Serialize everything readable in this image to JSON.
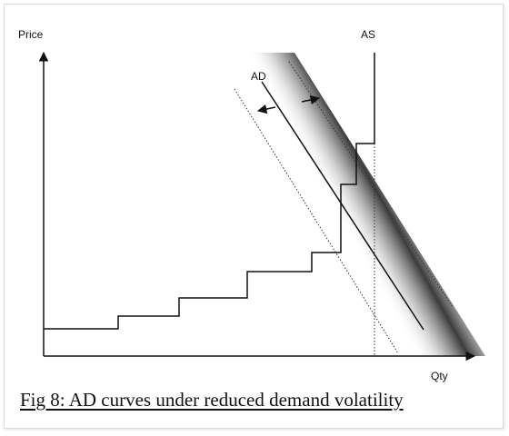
{
  "figure": {
    "y_axis_label": "Price",
    "x_axis_label": "Qty",
    "as_label": "AS",
    "ad_label": "AD",
    "caption": "Fig 8: AD curves under reduced demand volatility"
  },
  "colors": {
    "line": "#111111",
    "band_shadow": "#000000",
    "band_mid": "#8a8a8a"
  }
}
